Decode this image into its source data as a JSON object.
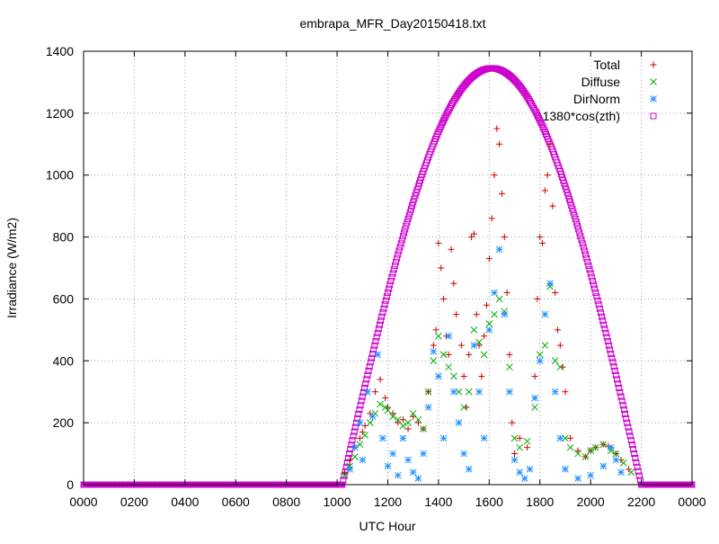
{
  "chart_data": {
    "type": "scatter",
    "title": "embrapa_MFR_Day20150418.txt",
    "xlabel": "UTC Hour",
    "ylabel": "Irradiance (W/m2)",
    "xlim": [
      0,
      24
    ],
    "ylim": [
      0,
      1400
    ],
    "grid": true,
    "legend_position": "top-right",
    "x_ticks": [
      {
        "value": 0,
        "label": "0000"
      },
      {
        "value": 2,
        "label": "0200"
      },
      {
        "value": 4,
        "label": "0400"
      },
      {
        "value": 6,
        "label": "0600"
      },
      {
        "value": 8,
        "label": "0800"
      },
      {
        "value": 10,
        "label": "1000"
      },
      {
        "value": 12,
        "label": "1200"
      },
      {
        "value": 14,
        "label": "1400"
      },
      {
        "value": 16,
        "label": "1600"
      },
      {
        "value": 18,
        "label": "1800"
      },
      {
        "value": 20,
        "label": "2000"
      },
      {
        "value": 22,
        "label": "2200"
      },
      {
        "value": 24,
        "label": "0000"
      }
    ],
    "y_ticks": [
      0,
      200,
      400,
      600,
      800,
      1000,
      1200,
      1400
    ],
    "series": [
      {
        "name": "Total",
        "marker": "plus",
        "color": "#cc0000",
        "points": [
          [
            10.3,
            40
          ],
          [
            10.5,
            80
          ],
          [
            10.7,
            120
          ],
          [
            10.9,
            150
          ],
          [
            11.0,
            170
          ],
          [
            11.1,
            190
          ],
          [
            11.3,
            230
          ],
          [
            11.5,
            300
          ],
          [
            11.7,
            340
          ],
          [
            11.9,
            280
          ],
          [
            12.0,
            250
          ],
          [
            12.2,
            230
          ],
          [
            12.4,
            200
          ],
          [
            12.6,
            210
          ],
          [
            12.8,
            180
          ],
          [
            13.0,
            220
          ],
          [
            13.2,
            200
          ],
          [
            13.4,
            180
          ],
          [
            13.6,
            300
          ],
          [
            13.8,
            450
          ],
          [
            13.9,
            500
          ],
          [
            14.0,
            780
          ],
          [
            14.1,
            700
          ],
          [
            14.2,
            600
          ],
          [
            14.3,
            480
          ],
          [
            14.4,
            420
          ],
          [
            14.5,
            760
          ],
          [
            14.6,
            650
          ],
          [
            14.7,
            550
          ],
          [
            14.9,
            450
          ],
          [
            15.0,
            350
          ],
          [
            15.1,
            250
          ],
          [
            15.2,
            420
          ],
          [
            15.3,
            800
          ],
          [
            15.4,
            810
          ],
          [
            15.5,
            550
          ],
          [
            15.6,
            450
          ],
          [
            15.7,
            350
          ],
          [
            15.8,
            480
          ],
          [
            15.9,
            580
          ],
          [
            16.0,
            730
          ],
          [
            16.1,
            860
          ],
          [
            16.2,
            1000
          ],
          [
            16.3,
            1150
          ],
          [
            16.4,
            1100
          ],
          [
            16.5,
            940
          ],
          [
            16.6,
            800
          ],
          [
            16.7,
            620
          ],
          [
            16.8,
            420
          ],
          [
            16.9,
            200
          ],
          [
            17.0,
            100
          ],
          [
            17.2,
            150
          ],
          [
            17.5,
            120
          ],
          [
            17.8,
            350
          ],
          [
            17.9,
            600
          ],
          [
            18.0,
            800
          ],
          [
            18.1,
            780
          ],
          [
            18.2,
            950
          ],
          [
            18.3,
            1000
          ],
          [
            18.4,
            1100
          ],
          [
            18.5,
            900
          ],
          [
            18.6,
            620
          ],
          [
            18.7,
            500
          ],
          [
            18.8,
            450
          ],
          [
            18.9,
            380
          ],
          [
            19.0,
            300
          ],
          [
            19.2,
            150
          ],
          [
            19.5,
            110
          ],
          [
            19.8,
            90
          ],
          [
            20.0,
            110
          ],
          [
            20.2,
            120
          ],
          [
            20.5,
            130
          ],
          [
            20.7,
            125
          ],
          [
            21.0,
            100
          ],
          [
            21.2,
            80
          ],
          [
            21.5,
            50
          ]
        ]
      },
      {
        "name": "Diffuse",
        "marker": "cross",
        "color": "#00aa00",
        "points": [
          [
            10.3,
            30
          ],
          [
            10.5,
            60
          ],
          [
            10.7,
            90
          ],
          [
            10.9,
            130
          ],
          [
            11.1,
            160
          ],
          [
            11.3,
            200
          ],
          [
            11.5,
            230
          ],
          [
            11.7,
            260
          ],
          [
            11.9,
            250
          ],
          [
            12.0,
            240
          ],
          [
            12.2,
            220
          ],
          [
            12.4,
            210
          ],
          [
            12.6,
            190
          ],
          [
            12.8,
            200
          ],
          [
            13.0,
            230
          ],
          [
            13.2,
            210
          ],
          [
            13.4,
            180
          ],
          [
            13.6,
            300
          ],
          [
            13.8,
            400
          ],
          [
            14.0,
            480
          ],
          [
            14.2,
            420
          ],
          [
            14.4,
            380
          ],
          [
            14.6,
            350
          ],
          [
            14.8,
            300
          ],
          [
            15.0,
            250
          ],
          [
            15.2,
            300
          ],
          [
            15.4,
            500
          ],
          [
            15.6,
            460
          ],
          [
            15.8,
            420
          ],
          [
            16.0,
            520
          ],
          [
            16.2,
            550
          ],
          [
            16.4,
            600
          ],
          [
            16.6,
            560
          ],
          [
            16.8,
            380
          ],
          [
            17.0,
            150
          ],
          [
            17.2,
            120
          ],
          [
            17.5,
            140
          ],
          [
            17.8,
            250
          ],
          [
            18.0,
            420
          ],
          [
            18.2,
            450
          ],
          [
            18.4,
            640
          ],
          [
            18.6,
            400
          ],
          [
            18.8,
            380
          ],
          [
            19.0,
            150
          ],
          [
            19.2,
            120
          ],
          [
            19.5,
            100
          ],
          [
            19.8,
            90
          ],
          [
            20.0,
            110
          ],
          [
            20.2,
            120
          ],
          [
            20.5,
            130
          ],
          [
            20.8,
            110
          ],
          [
            21.0,
            100
          ],
          [
            21.3,
            70
          ],
          [
            21.6,
            40
          ]
        ]
      },
      {
        "name": "DirNorm",
        "marker": "star",
        "color": "#1e90ff",
        "points": [
          [
            10.5,
            50
          ],
          [
            10.7,
            120
          ],
          [
            10.9,
            200
          ],
          [
            11.0,
            80
          ],
          [
            11.2,
            300
          ],
          [
            11.4,
            220
          ],
          [
            11.6,
            420
          ],
          [
            11.8,
            150
          ],
          [
            12.0,
            60
          ],
          [
            12.2,
            100
          ],
          [
            12.4,
            30
          ],
          [
            12.6,
            150
          ],
          [
            12.8,
            80
          ],
          [
            13.0,
            40
          ],
          [
            13.2,
            20
          ],
          [
            13.4,
            100
          ],
          [
            13.6,
            250
          ],
          [
            13.8,
            430
          ],
          [
            14.0,
            350
          ],
          [
            14.2,
            150
          ],
          [
            14.4,
            480
          ],
          [
            14.6,
            300
          ],
          [
            14.8,
            200
          ],
          [
            15.0,
            100
          ],
          [
            15.2,
            50
          ],
          [
            15.4,
            450
          ],
          [
            15.6,
            300
          ],
          [
            15.8,
            150
          ],
          [
            16.0,
            500
          ],
          [
            16.2,
            620
          ],
          [
            16.4,
            760
          ],
          [
            16.6,
            550
          ],
          [
            16.8,
            300
          ],
          [
            17.0,
            80
          ],
          [
            17.2,
            40
          ],
          [
            17.4,
            20
          ],
          [
            17.6,
            50
          ],
          [
            17.8,
            280
          ],
          [
            18.0,
            400
          ],
          [
            18.2,
            550
          ],
          [
            18.4,
            650
          ],
          [
            18.6,
            300
          ],
          [
            18.8,
            150
          ],
          [
            19.0,
            50
          ],
          [
            19.5,
            20
          ],
          [
            20.0,
            30
          ],
          [
            20.5,
            60
          ],
          [
            20.8,
            120
          ],
          [
            21.0,
            80
          ],
          [
            21.2,
            40
          ]
        ]
      },
      {
        "name": "1380*cos(zth)",
        "marker": "square",
        "color": "#cc00cc",
        "curve": {
          "sunrise": 10.2,
          "sunset": 22.0,
          "peak_x": 16.1,
          "peak_y": 1345,
          "step": 0.04
        }
      }
    ]
  }
}
